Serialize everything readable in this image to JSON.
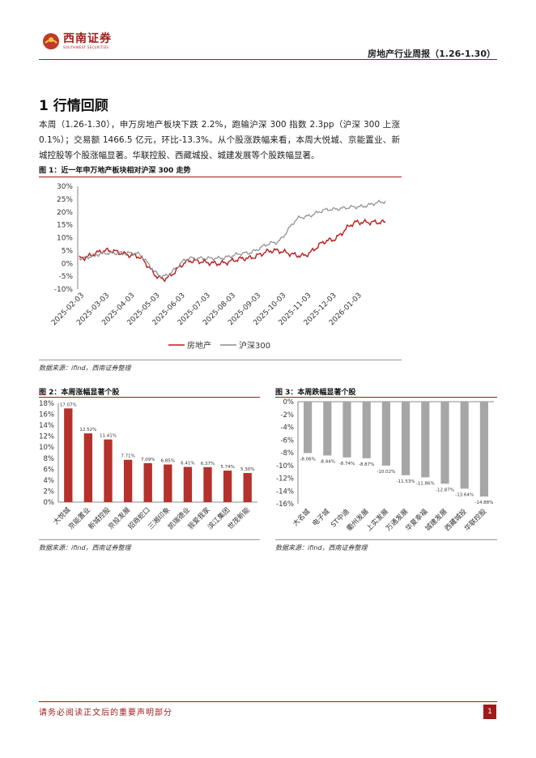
{
  "header": {
    "logo_text": "西南证券",
    "logo_sub": "SOUTHWEST SECURITIES",
    "report_title": "房地产行业周报（1.26-1.30）"
  },
  "section": {
    "title": "1 行情回顾"
  },
  "paragraph": "本周（1.26-1.30），申万房地产板块下跌 2.2%，跑输沪深 300 指数 2.3pp（沪深 300 上涨 0.1%）；交易额 1466.5 亿元，环比-13.3%。从个股涨跌幅来看，本周大悦城、京能置业、新城控股等个股涨幅显著。华联控股、西藏城投、城建发展等个股跌幅显著。",
  "figures": {
    "fig1_caption": "图 1：近一年申万地产板块相对沪深 300 走势",
    "fig2_caption": "图 2：本周涨幅显著个股",
    "fig3_caption": "图 3：本周跌幅显著个股",
    "source": "数据来源：ifind，西南证券整理"
  },
  "chart_data": [
    {
      "type": "line",
      "x": [
        "2025-02-03",
        "2025-03-03",
        "2025-04-03",
        "2025-05-03",
        "2025-06-03",
        "2025-07-03",
        "2025-08-03",
        "2025-09-03",
        "2025-10-03",
        "2025-11-03",
        "2025-12-03",
        "2026-01-03"
      ],
      "series": [
        {
          "name": "房地产",
          "color": "#b71c1c",
          "values": [
            2,
            5,
            3,
            -6,
            1,
            0,
            2,
            5,
            3,
            9,
            16,
            16
          ]
        },
        {
          "name": "沪深300",
          "color": "#8c8c8c",
          "values": [
            2,
            4,
            4,
            -5,
            2,
            2,
            4,
            8,
            18,
            21,
            22,
            24
          ]
        }
      ],
      "ylim": [
        -10,
        30
      ],
      "yticks": [
        "-10%",
        "-5%",
        "0%",
        "5%",
        "10%",
        "15%",
        "20%",
        "25%",
        "30%"
      ],
      "legend_position": "bottom"
    },
    {
      "type": "bar",
      "color": "#b5312c",
      "categories": [
        "大悦城",
        "京能置业",
        "新城控股",
        "京投发展",
        "招商蛇口",
        "三湘印象",
        "凯瑞德业",
        "我爱我家",
        "滨江集团",
        "世茂新能"
      ],
      "values": [
        17.07,
        12.52,
        11.41,
        7.71,
        7.09,
        6.85,
        6.41,
        6.37,
        5.74,
        5.3
      ],
      "labels": [
        "17.07%",
        "12.52%",
        "11.41%",
        "7.71%",
        "7.09%",
        "6.85%",
        "6.41%",
        "6.37%",
        "5.74%",
        "5.30%"
      ],
      "ylim": [
        0,
        18
      ],
      "yticks": [
        "0%",
        "2%",
        "4%",
        "6%",
        "8%",
        "10%",
        "12%",
        "14%",
        "16%",
        "18%"
      ]
    },
    {
      "type": "bar",
      "color": "#a6a6a6",
      "categories": [
        "大名城",
        "电子城",
        "ST中迪",
        "衢州发展",
        "上实发展",
        "万通发展",
        "华夏幸福",
        "城建发展",
        "西藏城投",
        "华联控股"
      ],
      "values": [
        -8.06,
        -8.44,
        -8.74,
        -8.87,
        -10.02,
        -11.53,
        -11.86,
        -12.87,
        -13.64,
        -14.88
      ],
      "labels": [
        "-8.06%",
        "-8.44%",
        "-8.74%",
        "-8.87%",
        "-10.02%",
        "-11.53%",
        "-11.86%",
        "-12.87%",
        "-13.64%",
        "-14.88%"
      ],
      "ylim": [
        -16,
        0
      ],
      "yticks": [
        "0%",
        "-2%",
        "-4%",
        "-6%",
        "-8%",
        "-10%",
        "-12%",
        "-14%",
        "-16%"
      ]
    }
  ],
  "footer": {
    "disclaimer": "请务必阅读正文后的重要声明部分",
    "page": "1"
  }
}
